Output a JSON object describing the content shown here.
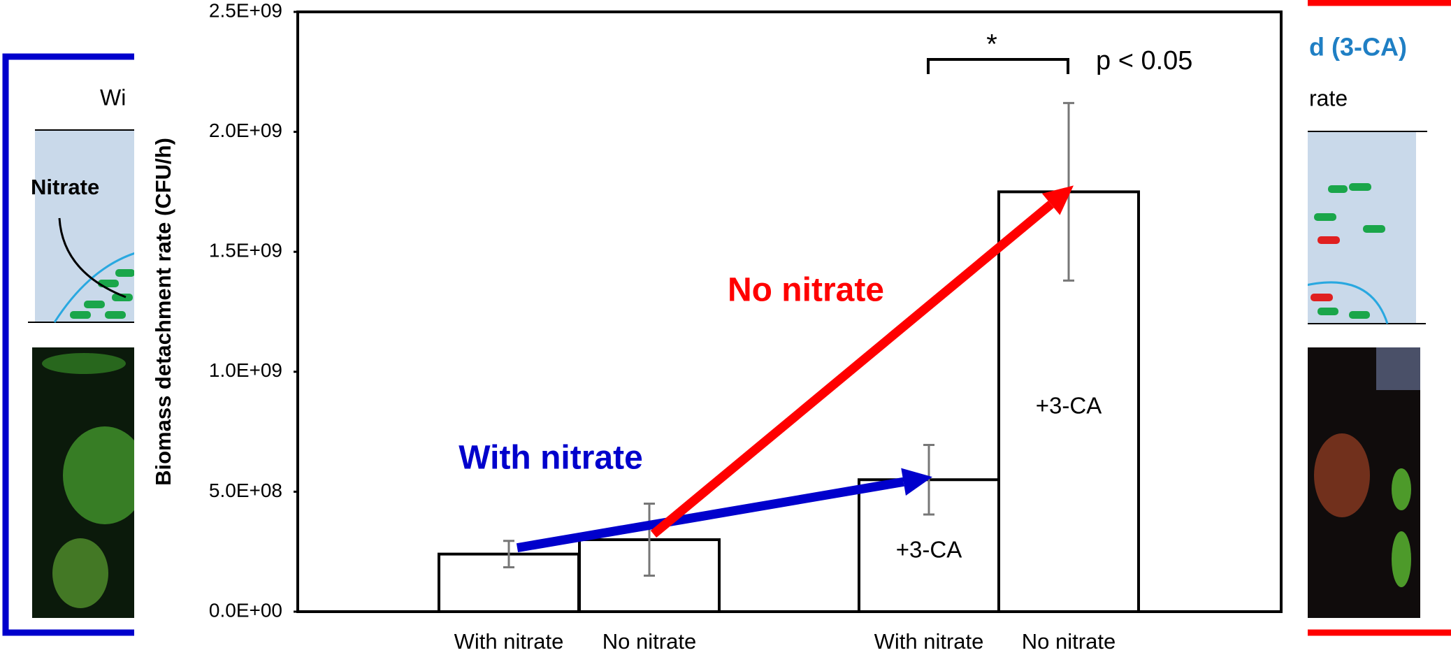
{
  "left_panel": {
    "heading": "Wi",
    "label": "Nitrate"
  },
  "right_panel": {
    "heading": "d (3-CA)",
    "subheading": "rate"
  },
  "chart_data": {
    "type": "bar",
    "y_label": "Biomass detachment rate (CFU/h)",
    "categories": [
      "With nitrate",
      "No nitrate",
      "With nitrate",
      "No nitrate"
    ],
    "values": [
      240000000,
      300000000,
      550000000,
      1750000000
    ],
    "errors": [
      55000000,
      150000000,
      145000000,
      370000000
    ],
    "bar_labels": [
      null,
      null,
      "+3-CA",
      "+3-CA"
    ],
    "color": "#ffffff",
    "edge_color": "#000000",
    "error_color": "#777777",
    "ylim": [
      0,
      2500000000
    ],
    "yticks": [
      {
        "value": 0,
        "label": "0.0E+00"
      },
      {
        "value": 500000000,
        "label": "5.0E+08"
      },
      {
        "value": 1000000000,
        "label": "1.0E+09"
      },
      {
        "value": 1500000000,
        "label": "1.5E+09"
      },
      {
        "value": 2000000000,
        "label": "2.0E+09"
      },
      {
        "value": 2500000000,
        "label": "2.5E+09"
      }
    ],
    "annotations": [
      {
        "text": "With nitrate",
        "color": "#0000cc"
      },
      {
        "text": "No nitrate",
        "color": "#ff0000"
      }
    ],
    "significance": {
      "marker": "*",
      "label": "p < 0.05"
    }
  }
}
